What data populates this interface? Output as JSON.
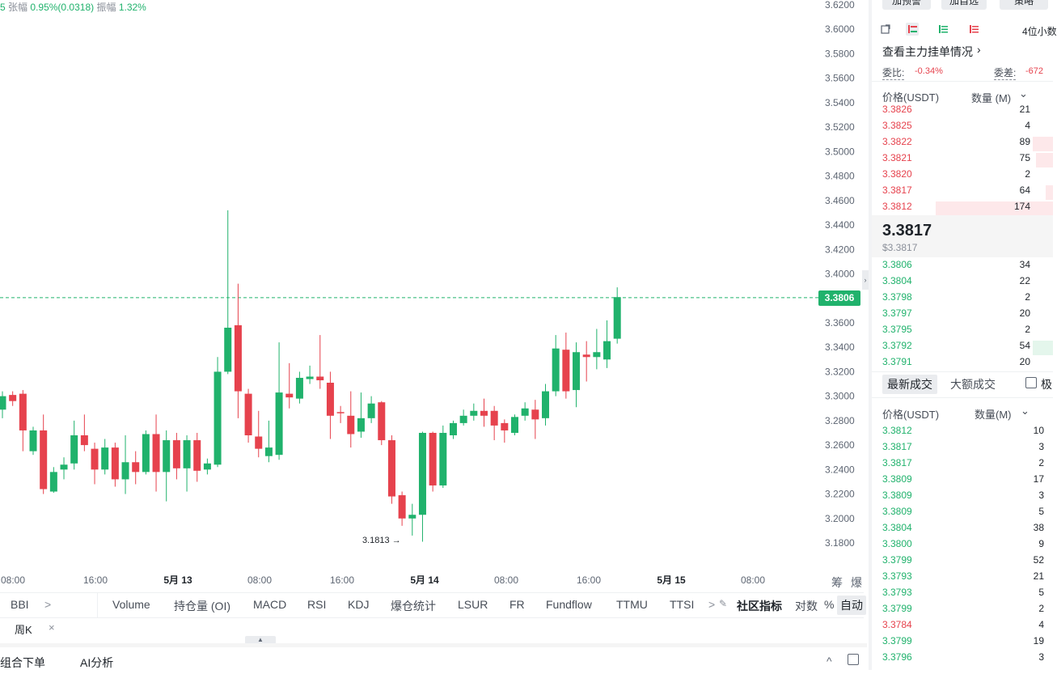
{
  "stats": {
    "prefix": "5",
    "change_label": "张幅",
    "change_value": "0.95%(0.0318)",
    "amp_label": "振幅",
    "amp_value": "1.32%"
  },
  "price_line": "3.3806",
  "low_marker": "3.1813 →",
  "chart_data": {
    "type": "candlestick",
    "y_ticks": [
      "3.6200",
      "3.6000",
      "3.5800",
      "3.5600",
      "3.5400",
      "3.5200",
      "3.5000",
      "3.4800",
      "3.4600",
      "3.4400",
      "3.4200",
      "3.4000",
      "3.3806",
      "3.3600",
      "3.3400",
      "3.3200",
      "3.3000",
      "3.2800",
      "3.2600",
      "3.2400",
      "3.2200",
      "3.2000",
      "3.1800"
    ],
    "ylim": [
      3.17,
      3.625
    ],
    "x_ticks": [
      {
        "label": "08:00",
        "bold": false
      },
      {
        "label": "16:00",
        "bold": false
      },
      {
        "label": "5月 13",
        "bold": true
      },
      {
        "label": "08:00",
        "bold": false
      },
      {
        "label": "16:00",
        "bold": false
      },
      {
        "label": "5月 14",
        "bold": true
      },
      {
        "label": "08:00",
        "bold": false
      },
      {
        "label": "16:00",
        "bold": false
      },
      {
        "label": "5月 15",
        "bold": true
      },
      {
        "label": "08:00",
        "bold": false
      }
    ],
    "candles": [
      [
        3.289,
        3.3,
        3.304,
        3.282
      ],
      [
        3.301,
        3.296,
        3.304,
        3.292
      ],
      [
        3.302,
        3.272,
        3.305,
        3.255
      ],
      [
        3.255,
        3.272,
        3.275,
        3.252
      ],
      [
        3.272,
        3.224,
        3.285,
        3.22
      ],
      [
        3.222,
        3.238,
        3.242,
        3.221
      ],
      [
        3.24,
        3.244,
        3.25,
        3.232
      ],
      [
        3.245,
        3.268,
        3.28,
        3.24
      ],
      [
        3.268,
        3.26,
        3.285,
        3.255
      ],
      [
        3.257,
        3.24,
        3.262,
        3.228
      ],
      [
        3.24,
        3.258,
        3.265,
        3.236
      ],
      [
        3.258,
        3.232,
        3.262,
        3.226
      ],
      [
        3.232,
        3.246,
        3.268,
        3.22
      ],
      [
        3.246,
        3.238,
        3.255,
        3.228
      ],
      [
        3.238,
        3.269,
        3.272,
        3.236
      ],
      [
        3.269,
        3.238,
        3.285,
        3.222
      ],
      [
        3.238,
        3.264,
        3.272,
        3.214
      ],
      [
        3.264,
        3.241,
        3.27,
        3.232
      ],
      [
        3.241,
        3.264,
        3.268,
        3.222
      ],
      [
        3.264,
        3.239,
        3.27,
        3.23
      ],
      [
        3.24,
        3.245,
        3.249,
        3.236
      ],
      [
        3.244,
        3.32,
        3.332,
        3.242
      ],
      [
        3.32,
        3.356,
        3.452,
        3.318
      ],
      [
        3.358,
        3.304,
        3.392,
        3.282
      ],
      [
        3.302,
        3.268,
        3.306,
        3.262
      ],
      [
        3.267,
        3.257,
        3.288,
        3.25
      ],
      [
        3.251,
        3.258,
        3.28,
        3.246
      ],
      [
        3.252,
        3.303,
        3.344,
        3.248
      ],
      [
        3.302,
        3.299,
        3.327,
        3.29
      ],
      [
        3.298,
        3.315,
        3.32,
        3.294
      ],
      [
        3.314,
        3.316,
        3.325,
        3.31
      ],
      [
        3.316,
        3.313,
        3.35,
        3.306
      ],
      [
        3.311,
        3.284,
        3.32,
        3.265
      ],
      [
        3.287,
        3.286,
        3.292,
        3.278
      ],
      [
        3.284,
        3.269,
        3.304,
        3.258
      ],
      [
        3.271,
        3.282,
        3.303,
        3.266
      ],
      [
        3.282,
        3.294,
        3.3,
        3.278
      ],
      [
        3.295,
        3.264,
        3.296,
        3.26
      ],
      [
        3.264,
        3.218,
        3.268,
        3.212
      ],
      [
        3.219,
        3.2,
        3.222,
        3.194
      ],
      [
        3.2,
        3.203,
        3.212,
        3.186
      ],
      [
        3.203,
        3.27,
        3.271,
        3.181
      ],
      [
        3.27,
        3.227,
        3.271,
        3.222
      ],
      [
        3.227,
        3.27,
        3.276,
        3.225
      ],
      [
        3.268,
        3.278,
        3.28,
        3.265
      ],
      [
        3.278,
        3.284,
        3.289,
        3.276
      ],
      [
        3.284,
        3.288,
        3.294,
        3.28
      ],
      [
        3.288,
        3.284,
        3.298,
        3.275
      ],
      [
        3.288,
        3.276,
        3.292,
        3.264
      ],
      [
        3.278,
        3.272,
        3.281,
        3.262
      ],
      [
        3.27,
        3.283,
        3.285,
        3.268
      ],
      [
        3.284,
        3.29,
        3.295,
        3.28
      ],
      [
        3.289,
        3.281,
        3.297,
        3.265
      ],
      [
        3.282,
        3.304,
        3.31,
        3.276
      ],
      [
        3.304,
        3.339,
        3.35,
        3.3
      ],
      [
        3.338,
        3.304,
        3.352,
        3.298
      ],
      [
        3.305,
        3.336,
        3.344,
        3.291
      ],
      [
        3.334,
        3.332,
        3.345,
        3.312
      ],
      [
        3.332,
        3.336,
        3.355,
        3.322
      ],
      [
        3.33,
        3.345,
        3.362,
        3.323
      ],
      [
        3.347,
        3.381,
        3.389,
        3.343
      ]
    ]
  },
  "scale_buttons": [
    "筹",
    "爆"
  ],
  "indicators": {
    "first": "BBI",
    "chevron": ">",
    "items": [
      "Volume",
      "持仓量 (OI)",
      "MACD",
      "RSI",
      "KDJ",
      "爆仓统计",
      "LSUR",
      "FR",
      "Fundflow",
      "TTMU",
      "TTSI"
    ],
    "more": ">",
    "community": "社区指标",
    "log": "对数",
    "pct": "%",
    "auto": "自动"
  },
  "period_tab": "周K",
  "close_x": "×",
  "bottom": {
    "combo": "组合下单",
    "ai": "AI分析"
  },
  "right": {
    "top_buttons": [
      "加预警",
      "加自选",
      "策略"
    ],
    "precision": "4位小数",
    "main_orders": "查看主力挂单情况",
    "ratio_label": "委比:",
    "ratio_value": "-0.34%",
    "diff_label": "委差:",
    "diff_value": "-672",
    "price_hdr": "价格(USDT)",
    "qty_hdr": "数量 (M)",
    "asks": [
      {
        "p": "3.3826",
        "q": "21",
        "w": 0
      },
      {
        "p": "3.3825",
        "q": "4",
        "w": 0
      },
      {
        "p": "3.3822",
        "q": "89",
        "w": 25
      },
      {
        "p": "3.3821",
        "q": "75",
        "w": 21
      },
      {
        "p": "3.3820",
        "q": "2",
        "w": 0
      },
      {
        "p": "3.3817",
        "q": "64",
        "w": 9
      },
      {
        "p": "3.3812",
        "q": "174",
        "w": 145
      }
    ],
    "last_price": "3.3817",
    "last_usd": "$3.3817",
    "bids": [
      {
        "p": "3.3806",
        "q": "34",
        "w": 0
      },
      {
        "p": "3.3804",
        "q": "22",
        "w": 0
      },
      {
        "p": "3.3798",
        "q": "2",
        "w": 0
      },
      {
        "p": "3.3797",
        "q": "20",
        "w": 0
      },
      {
        "p": "3.3795",
        "q": "2",
        "w": 0
      },
      {
        "p": "3.3792",
        "q": "54",
        "w": 25
      },
      {
        "p": "3.3791",
        "q": "20",
        "w": 0
      }
    ],
    "tabs": [
      "最新成交",
      "大额成交"
    ],
    "cb_label": "极",
    "trade_price_hdr": "价格(USDT)",
    "trade_qty_hdr": "数量(M)",
    "trades": [
      {
        "p": "3.3812",
        "q": "10",
        "c": "green"
      },
      {
        "p": "3.3817",
        "q": "3",
        "c": "green"
      },
      {
        "p": "3.3817",
        "q": "2",
        "c": "green"
      },
      {
        "p": "3.3809",
        "q": "17",
        "c": "green"
      },
      {
        "p": "3.3809",
        "q": "3",
        "c": "green"
      },
      {
        "p": "3.3809",
        "q": "5",
        "c": "green"
      },
      {
        "p": "3.3804",
        "q": "38",
        "c": "green"
      },
      {
        "p": "3.3800",
        "q": "9",
        "c": "green"
      },
      {
        "p": "3.3799",
        "q": "52",
        "c": "green"
      },
      {
        "p": "3.3793",
        "q": "21",
        "c": "green"
      },
      {
        "p": "3.3793",
        "q": "5",
        "c": "green"
      },
      {
        "p": "3.3799",
        "q": "2",
        "c": "green"
      },
      {
        "p": "3.3784",
        "q": "4",
        "c": "red"
      },
      {
        "p": "3.3799",
        "q": "19",
        "c": "green"
      },
      {
        "p": "3.3796",
        "q": "3",
        "c": "green"
      }
    ]
  },
  "colors": {
    "up": "#20b26c",
    "down": "#e6424d"
  }
}
